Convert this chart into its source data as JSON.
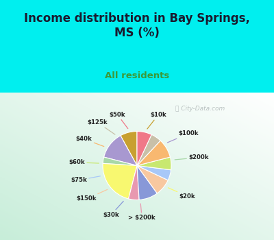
{
  "title": "Income distribution in Bay Springs,\nMS (%)",
  "subtitle": "All residents",
  "bg_cyan": "#00EFEF",
  "watermark": "ⓘ City-Data.com",
  "labels": [
    "$10k",
    "$100k",
    "$200k",
    "$20k",
    "> $200k",
    "$30k",
    "$150k",
    "$75k",
    "$60k",
    "$40k",
    "$125k",
    "$50k"
  ],
  "values": [
    8,
    13,
    3,
    22,
    5,
    9,
    8,
    5,
    6,
    9,
    5,
    7
  ],
  "colors": [
    "#c8a030",
    "#a898d0",
    "#a8d8a8",
    "#f8f870",
    "#e898b0",
    "#8898d8",
    "#f8c8a0",
    "#a8c8f8",
    "#c8e870",
    "#f8b870",
    "#c8c0a8",
    "#f07888"
  ],
  "startangle": 90,
  "label_r": 1.52,
  "pie_r": 1.0
}
